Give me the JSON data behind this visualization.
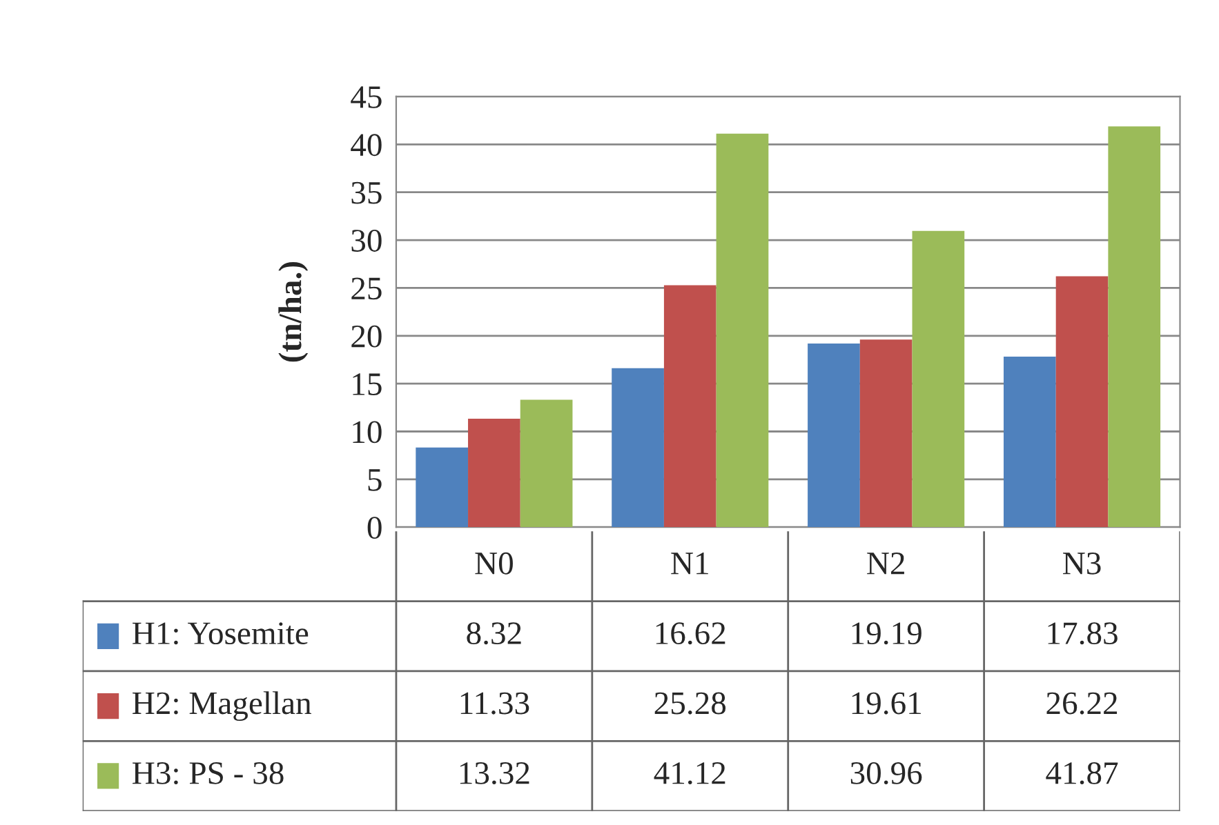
{
  "chart_data": {
    "type": "bar",
    "ylabel": "(tn/ha.)",
    "categories": [
      "N0",
      "N1",
      "N2",
      "N3"
    ],
    "series": [
      {
        "name": "H1: Yosemite",
        "color": "#4f81bd",
        "values": [
          8.32,
          16.62,
          19.19,
          17.83
        ]
      },
      {
        "name": "H2: Magellan",
        "color": "#c0504d",
        "values": [
          11.33,
          25.28,
          19.61,
          26.22
        ]
      },
      {
        "name": "H3: PS - 38",
        "color": "#9bbb59",
        "values": [
          13.32,
          41.12,
          30.96,
          41.87
        ]
      }
    ],
    "ylim": [
      0,
      45
    ],
    "yticks": [
      0,
      5,
      10,
      15,
      20,
      25,
      30,
      35,
      40,
      45
    ],
    "grid": "y",
    "legend": "bottom",
    "data_labels": true
  }
}
